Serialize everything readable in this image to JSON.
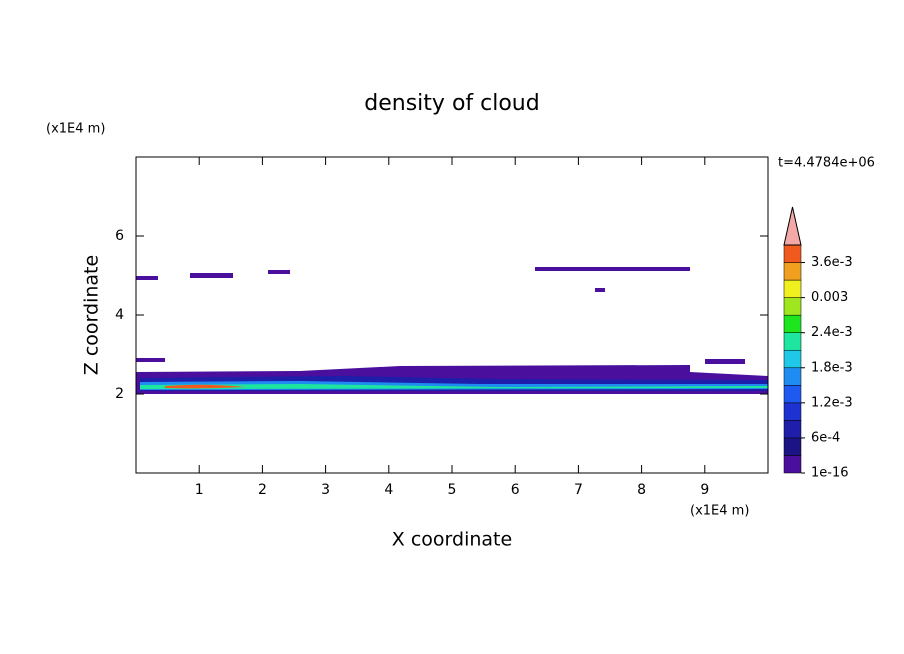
{
  "chart_data": {
    "type": "contour",
    "title": "density of cloud",
    "xlabel": "X coordinate",
    "ylabel": "Z coordinate",
    "x_unit": "(x1E4 m)",
    "y_unit": "(x1E4 m)",
    "annotation": "t=4.4784e+06",
    "xlim": [
      0,
      10
    ],
    "ylim": [
      0,
      8
    ],
    "xticks": [
      1,
      2,
      3,
      4,
      5,
      6,
      7,
      8,
      9
    ],
    "yticks": [
      2,
      4,
      6
    ],
    "colorbar": {
      "lim": [
        0,
        0.0039
      ],
      "ticks": [
        1e-16,
        {
          "value": 0.0006,
          "label": "6e-4"
        },
        {
          "value": 0.0012,
          "label": "1.2e-3"
        },
        {
          "value": 0.0018,
          "label": "1.8e-3"
        },
        {
          "value": 0.0024,
          "label": "2.4e-3"
        },
        0.003,
        {
          "value": 0.0036,
          "label": "3.6e-3"
        }
      ],
      "colors": [
        "#4a0f9c",
        "#1c1484",
        "#1e1eaa",
        "#1e32d2",
        "#1e5af0",
        "#1e8cf0",
        "#1ec8e6",
        "#1ee6a0",
        "#1ee61e",
        "#a0e61e",
        "#f0f01e",
        "#f0a01e",
        "#f05a1e"
      ],
      "extend_color": "#f4a8a8"
    }
  }
}
